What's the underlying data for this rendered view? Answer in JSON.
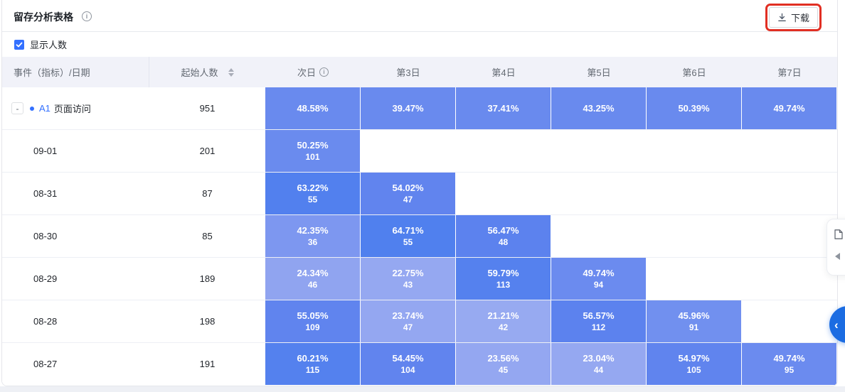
{
  "header": {
    "title": "留存分析表格",
    "download_label": "下载"
  },
  "controls": {
    "show_count": {
      "label": "显示人数",
      "checked": true
    }
  },
  "table": {
    "columns": [
      {
        "label": "事件（指标）/日期"
      },
      {
        "label": "起始人数",
        "sortable": true
      },
      {
        "label": "次日",
        "info": true
      },
      {
        "label": "第3日"
      },
      {
        "label": "第4日"
      },
      {
        "label": "第5日"
      },
      {
        "label": "第6日"
      },
      {
        "label": "第7日"
      }
    ],
    "rows": [
      {
        "type": "event",
        "expander": "-",
        "marker": "A1",
        "name": "页面访问",
        "start": "951",
        "cells": [
          {
            "pct": "48.58%",
            "color": "#698AEE"
          },
          {
            "pct": "39.47%",
            "color": "#698AEE"
          },
          {
            "pct": "37.41%",
            "color": "#698AEE"
          },
          {
            "pct": "43.25%",
            "color": "#698AEE"
          },
          {
            "pct": "50.39%",
            "color": "#698AEE"
          },
          {
            "pct": "49.74%",
            "color": "#698AEE"
          }
        ]
      },
      {
        "type": "date",
        "name": "09-01",
        "start": "201",
        "cells": [
          {
            "pct": "50.25%",
            "count": "101",
            "color": "#6A8BEE"
          }
        ]
      },
      {
        "type": "date",
        "name": "08-31",
        "start": "87",
        "cells": [
          {
            "pct": "63.22%",
            "count": "55",
            "color": "#5280EE"
          },
          {
            "pct": "54.02%",
            "count": "47",
            "color": "#6184EE"
          }
        ]
      },
      {
        "type": "date",
        "name": "08-30",
        "start": "85",
        "cells": [
          {
            "pct": "42.35%",
            "count": "36",
            "color": "#7D97F0"
          },
          {
            "pct": "64.71%",
            "count": "55",
            "color": "#5080EE"
          },
          {
            "pct": "56.47%",
            "count": "48",
            "color": "#5C82EE"
          }
        ]
      },
      {
        "type": "date",
        "name": "08-29",
        "start": "189",
        "cells": [
          {
            "pct": "24.34%",
            "count": "46",
            "color": "#90A4F0"
          },
          {
            "pct": "22.75%",
            "count": "43",
            "color": "#95A8F1"
          },
          {
            "pct": "59.79%",
            "count": "113",
            "color": "#5581EE"
          },
          {
            "pct": "49.74%",
            "count": "94",
            "color": "#6B8BEF"
          }
        ]
      },
      {
        "type": "date",
        "name": "08-28",
        "start": "198",
        "cells": [
          {
            "pct": "55.05%",
            "count": "109",
            "color": "#6084EE"
          },
          {
            "pct": "23.74%",
            "count": "47",
            "color": "#94A7F1"
          },
          {
            "pct": "21.21%",
            "count": "42",
            "color": "#97AAF1"
          },
          {
            "pct": "56.57%",
            "count": "112",
            "color": "#5C82EE"
          },
          {
            "pct": "45.96%",
            "count": "91",
            "color": "#7190EF"
          }
        ]
      },
      {
        "type": "date",
        "name": "08-27",
        "start": "191",
        "cells": [
          {
            "pct": "60.21%",
            "count": "115",
            "color": "#5481EE"
          },
          {
            "pct": "54.45%",
            "count": "104",
            "color": "#6184EE"
          },
          {
            "pct": "23.56%",
            "count": "45",
            "color": "#94A7F1"
          },
          {
            "pct": "23.04%",
            "count": "44",
            "color": "#95A8F1"
          },
          {
            "pct": "54.97%",
            "count": "105",
            "color": "#6084EE"
          },
          {
            "pct": "49.74%",
            "count": "95",
            "color": "#6B8BEF"
          }
        ]
      }
    ]
  },
  "floating": {
    "fab_chevron": "‹"
  },
  "colors": {
    "accent": "#3370ff",
    "annotation_red": "#e12f23",
    "header_bg": "#f1f2f9",
    "border": "#e5e6eb",
    "fab_blue": "#1b6ce2"
  }
}
